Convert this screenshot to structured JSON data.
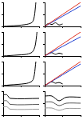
{
  "chart_data": [
    {
      "type": "line",
      "tick_labels": false,
      "grid": false,
      "xlim": [
        0,
        1
      ],
      "ylim": [
        0,
        1
      ],
      "xticks": [
        0,
        0.5,
        1
      ],
      "yticks": [
        0,
        0.5,
        1
      ],
      "series": [
        {
          "color": "#000000",
          "x": [
            0,
            0.2,
            0.4,
            0.6,
            0.7,
            0.8,
            0.85,
            0.88,
            0.9,
            0.91
          ],
          "values": [
            0,
            0.02,
            0.04,
            0.07,
            0.1,
            0.16,
            0.3,
            0.55,
            0.85,
            1
          ]
        }
      ]
    },
    {
      "type": "line",
      "tick_labels": false,
      "grid": false,
      "xlim": [
        0,
        1
      ],
      "ylim": [
        0,
        1
      ],
      "xticks": [
        0,
        0.5,
        1
      ],
      "yticks": [
        0,
        0.5,
        1
      ],
      "series": [
        {
          "color": "#e03020",
          "x": [
            0,
            1
          ],
          "values": [
            0,
            1
          ]
        },
        {
          "color": "#2040d0",
          "x": [
            0,
            1
          ],
          "values": [
            0,
            0.85
          ]
        },
        {
          "color": "#000000",
          "x": [
            0,
            0.1,
            0.2,
            0.3,
            0.4,
            0.5
          ],
          "values": [
            0,
            0.12,
            0.08,
            0.15,
            0.06,
            0.1
          ]
        }
      ]
    },
    {
      "type": "line",
      "tick_labels": false,
      "grid": false,
      "xlim": [
        0,
        1
      ],
      "ylim": [
        0,
        1
      ],
      "xticks": [
        0,
        0.5,
        1
      ],
      "yticks": [
        0,
        0.5,
        1
      ],
      "series": [
        {
          "color": "#000000",
          "x": [
            0,
            0.2,
            0.4,
            0.6,
            0.7,
            0.8,
            0.86,
            0.9,
            0.93,
            0.94
          ],
          "values": [
            0,
            0.02,
            0.04,
            0.06,
            0.09,
            0.15,
            0.28,
            0.5,
            0.85,
            1
          ]
        }
      ]
    },
    {
      "type": "line",
      "tick_labels": false,
      "grid": false,
      "xlim": [
        0,
        1
      ],
      "ylim": [
        0,
        1
      ],
      "xticks": [
        0,
        0.5,
        1
      ],
      "yticks": [
        0,
        0.5,
        1
      ],
      "series": [
        {
          "color": "#e03020",
          "x": [
            0,
            1
          ],
          "values": [
            0,
            1
          ]
        },
        {
          "color": "#2040d0",
          "x": [
            0,
            1
          ],
          "values": [
            0,
            0.8
          ]
        },
        {
          "color": "#000000",
          "x": [
            0,
            0.1,
            0.2,
            0.3,
            0.4,
            0.5
          ],
          "values": [
            0,
            0.1,
            0.14,
            0.07,
            0.12,
            0.08
          ]
        }
      ]
    },
    {
      "type": "line",
      "tick_labels": false,
      "grid": false,
      "xlim": [
        0,
        1
      ],
      "ylim": [
        0,
        1
      ],
      "xticks": [
        0,
        0.5,
        1
      ],
      "yticks": [
        0,
        0.5,
        1
      ],
      "series": [
        {
          "color": "#000000",
          "x": [
            0,
            0.2,
            0.4,
            0.6,
            0.7,
            0.8,
            0.85,
            0.88,
            0.9,
            0.91
          ],
          "values": [
            0,
            0.03,
            0.05,
            0.08,
            0.11,
            0.18,
            0.32,
            0.58,
            0.88,
            1
          ]
        }
      ]
    },
    {
      "type": "line",
      "tick_labels": false,
      "grid": false,
      "xlim": [
        0,
        1
      ],
      "ylim": [
        0,
        1
      ],
      "xticks": [
        0,
        0.5,
        1
      ],
      "yticks": [
        0,
        0.5,
        1
      ],
      "series": [
        {
          "color": "#e03020",
          "x": [
            0,
            1
          ],
          "values": [
            0,
            1
          ]
        },
        {
          "color": "#2040d0",
          "x": [
            0,
            1
          ],
          "values": [
            0,
            0.9
          ]
        },
        {
          "color": "#000000",
          "x": [
            0,
            0.1,
            0.2,
            0.3,
            0.4,
            0.5
          ],
          "values": [
            0,
            0.09,
            0.16,
            0.1,
            0.13,
            0.07
          ]
        }
      ]
    },
    {
      "type": "line",
      "tick_labels": false,
      "grid": false,
      "xlim": [
        0,
        1
      ],
      "ylim": [
        0,
        1
      ],
      "xticks": [
        0,
        0.5,
        1
      ],
      "yticks": [
        0,
        0.5,
        1
      ],
      "series": [
        {
          "color": "#000000",
          "x": [
            0,
            0.1,
            0.2,
            1
          ],
          "values": [
            0.85,
            0.85,
            0.7,
            0.7
          ]
        },
        {
          "color": "#555555",
          "x": [
            0,
            0.1,
            0.2,
            1
          ],
          "values": [
            0.6,
            0.6,
            0.45,
            0.45
          ]
        },
        {
          "color": "#999999",
          "x": [
            0,
            0.1,
            0.2,
            1
          ],
          "values": [
            0.35,
            0.35,
            0.25,
            0.25
          ]
        }
      ]
    },
    {
      "type": "line",
      "tick_labels": false,
      "grid": false,
      "xlim": [
        0,
        1
      ],
      "ylim": [
        0,
        1
      ],
      "xticks": [
        0,
        0.5,
        1
      ],
      "yticks": [
        0,
        0.5,
        1
      ],
      "series": [
        {
          "color": "#000000",
          "x": [
            0,
            0.2,
            0.4,
            0.6,
            1
          ],
          "values": [
            0.8,
            0.8,
            0.6,
            0.75,
            0.75
          ]
        },
        {
          "color": "#555555",
          "x": [
            0,
            0.2,
            0.4,
            0.6,
            1
          ],
          "values": [
            0.55,
            0.55,
            0.4,
            0.5,
            0.5
          ]
        },
        {
          "color": "#999999",
          "x": [
            0,
            0.2,
            0.4,
            0.6,
            1
          ],
          "values": [
            0.3,
            0.3,
            0.2,
            0.28,
            0.28
          ]
        }
      ]
    }
  ]
}
